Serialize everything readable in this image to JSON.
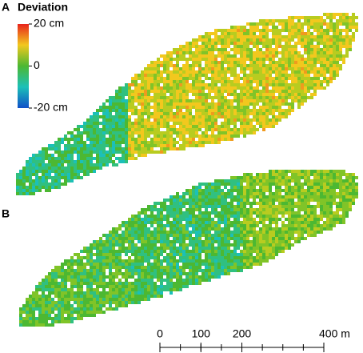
{
  "panels": [
    {
      "label": "A"
    },
    {
      "label": "B"
    }
  ],
  "colorbar": {
    "title": "Deviation",
    "range": [
      -20,
      20
    ],
    "ticks": [
      {
        "value": 20,
        "label": "20 cm"
      },
      0,
      {
        "value": -20,
        "label": "-20 cm"
      }
    ]
  },
  "scale_bar": {
    "range": [
      0,
      400
    ],
    "ticks": [
      0,
      100,
      200,
      {
        "value": 400,
        "label": "400 m"
      }
    ]
  }
}
